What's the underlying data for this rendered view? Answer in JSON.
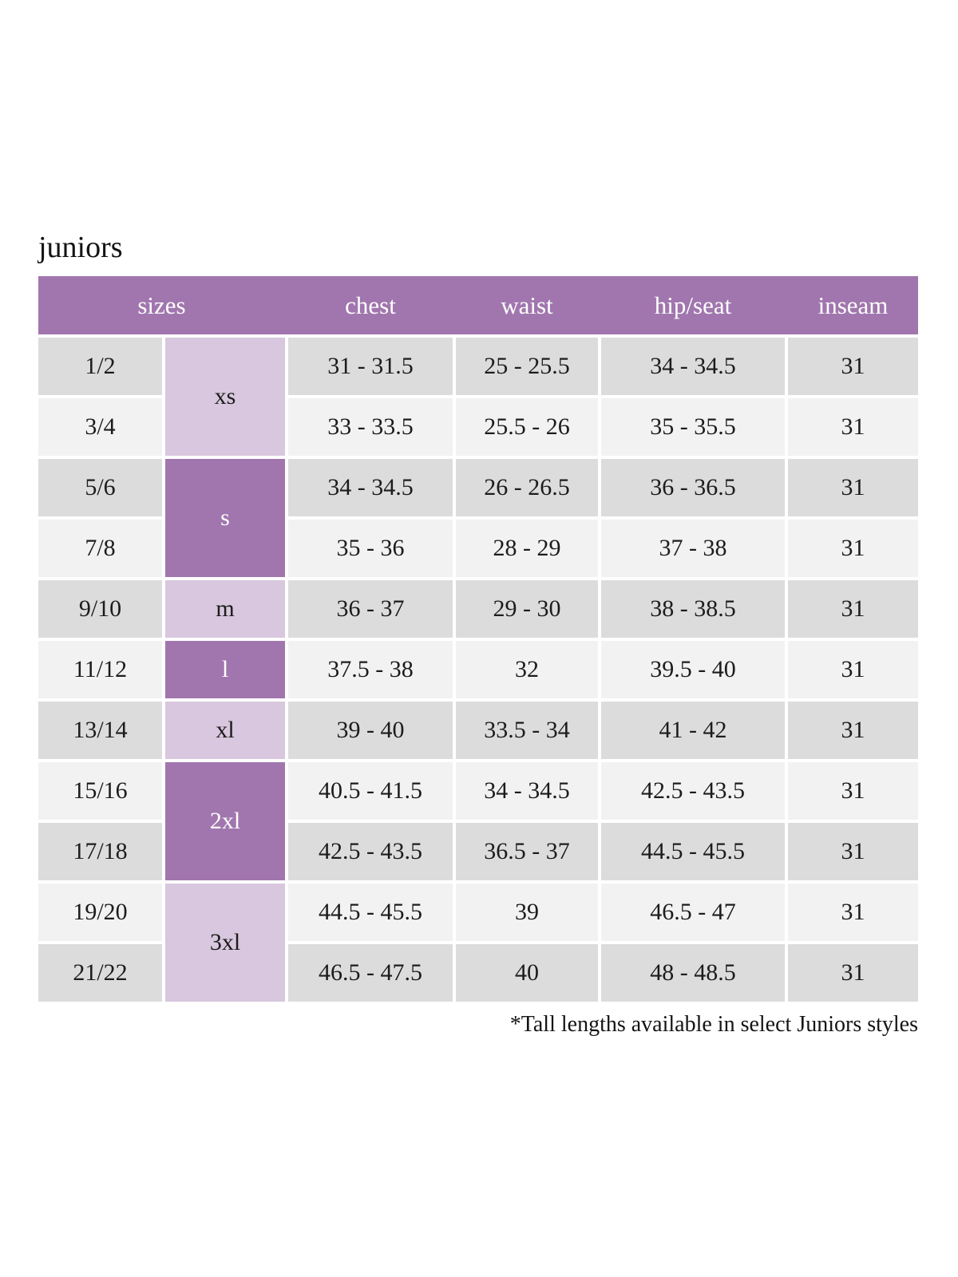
{
  "page": {
    "title": "juniors",
    "footnote": "*Tall lengths available in select Juniors styles"
  },
  "colors": {
    "header_purple": "#a176ae",
    "group_light_purple": "#d8c7de",
    "row_gray": "#dcdcdc",
    "row_light": "#f2f2f2",
    "text_dark": "#1c1c1c",
    "text_on_purple": "#ffffff"
  },
  "table": {
    "headers": [
      "sizes",
      "chest",
      "waist",
      "hip/seat",
      "inseam"
    ],
    "size_groups": [
      {
        "label": "xs",
        "rows_spanned": 2,
        "shade": "light"
      },
      {
        "label": "s",
        "rows_spanned": 2,
        "shade": "dark"
      },
      {
        "label": "m",
        "rows_spanned": 1,
        "shade": "light"
      },
      {
        "label": "l",
        "rows_spanned": 1,
        "shade": "dark"
      },
      {
        "label": "xl",
        "rows_spanned": 1,
        "shade": "light"
      },
      {
        "label": "2xl",
        "rows_spanned": 2,
        "shade": "dark"
      },
      {
        "label": "3xl",
        "rows_spanned": 2,
        "shade": "light"
      }
    ],
    "rows": [
      {
        "size": "1/2",
        "group": "xs",
        "chest": "31 - 31.5",
        "waist": "25 - 25.5",
        "hip_seat": "34 - 34.5",
        "inseam": "31"
      },
      {
        "size": "3/4",
        "group": "xs",
        "chest": "33 - 33.5",
        "waist": "25.5 - 26",
        "hip_seat": "35 - 35.5",
        "inseam": "31"
      },
      {
        "size": "5/6",
        "group": "s",
        "chest": "34 - 34.5",
        "waist": "26 - 26.5",
        "hip_seat": "36 - 36.5",
        "inseam": "31"
      },
      {
        "size": "7/8",
        "group": "s",
        "chest": "35 - 36",
        "waist": "28 - 29",
        "hip_seat": "37 - 38",
        "inseam": "31"
      },
      {
        "size": "9/10",
        "group": "m",
        "chest": "36 - 37",
        "waist": "29 - 30",
        "hip_seat": "38 - 38.5",
        "inseam": "31"
      },
      {
        "size": "11/12",
        "group": "l",
        "chest": "37.5 - 38",
        "waist": "32",
        "hip_seat": "39.5 - 40",
        "inseam": "31"
      },
      {
        "size": "13/14",
        "group": "xl",
        "chest": "39 - 40",
        "waist": "33.5 - 34",
        "hip_seat": "41 - 42",
        "inseam": "31"
      },
      {
        "size": "15/16",
        "group": "2xl",
        "chest": "40.5 - 41.5",
        "waist": "34 - 34.5",
        "hip_seat": "42.5 - 43.5",
        "inseam": "31"
      },
      {
        "size": "17/18",
        "group": "2xl",
        "chest": "42.5 - 43.5",
        "waist": "36.5 - 37",
        "hip_seat": "44.5 - 45.5",
        "inseam": "31"
      },
      {
        "size": "19/20",
        "group": "3xl",
        "chest": "44.5 - 45.5",
        "waist": "39",
        "hip_seat": "46.5 - 47",
        "inseam": "31"
      },
      {
        "size": "21/22",
        "group": "3xl",
        "chest": "46.5 - 47.5",
        "waist": "40",
        "hip_seat": "48 - 48.5",
        "inseam": "31"
      }
    ]
  }
}
